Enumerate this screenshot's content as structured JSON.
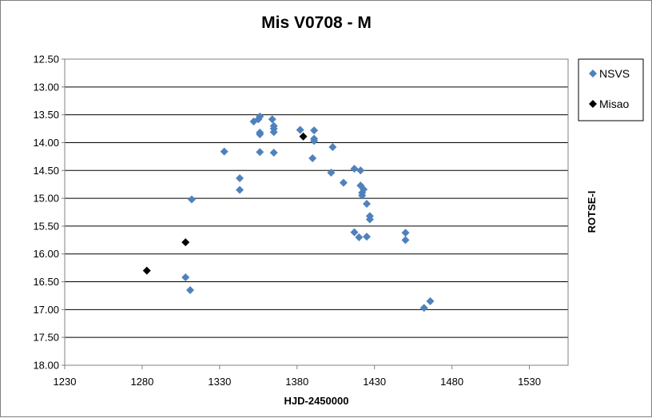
{
  "chart_data": {
    "type": "scatter",
    "title": "Mis V0708 - M",
    "xlabel": "HJD-2450000",
    "ylabel": "ROTSE-I",
    "xlim": [
      1230,
      1555
    ],
    "ylim": [
      12.5,
      18.0
    ],
    "y_reversed": true,
    "xticks": [
      "1230",
      "1280",
      "1330",
      "1380",
      "1430",
      "1480",
      "1530"
    ],
    "yticks": [
      "12.50",
      "13.00",
      "13.50",
      "14.00",
      "14.50",
      "15.00",
      "15.50",
      "16.00",
      "16.50",
      "17.00",
      "17.50",
      "18.00"
    ],
    "grid": "horizontal",
    "legend_position": "right-top",
    "series": [
      {
        "name": "NSVS",
        "color": "#4f81bd",
        "marker": "diamond",
        "points": [
          [
            1308,
            16.42
          ],
          [
            1311,
            16.65
          ],
          [
            1312,
            15.02
          ],
          [
            1333,
            14.16
          ],
          [
            1343,
            14.64
          ],
          [
            1343,
            14.85
          ],
          [
            1352,
            13.62
          ],
          [
            1355,
            13.58
          ],
          [
            1356,
            13.53
          ],
          [
            1356,
            13.82
          ],
          [
            1356,
            13.85
          ],
          [
            1356,
            14.17
          ],
          [
            1364,
            13.58
          ],
          [
            1365,
            13.7
          ],
          [
            1365,
            13.75
          ],
          [
            1365,
            13.81
          ],
          [
            1365,
            14.18
          ],
          [
            1382,
            13.77
          ],
          [
            1390,
            14.28
          ],
          [
            1391,
            13.78
          ],
          [
            1391,
            13.93
          ],
          [
            1391,
            13.97
          ],
          [
            1402,
            14.54
          ],
          [
            1403,
            14.08
          ],
          [
            1410,
            14.72
          ],
          [
            1417,
            14.47
          ],
          [
            1417,
            15.61
          ],
          [
            1420,
            15.7
          ],
          [
            1421,
            14.5
          ],
          [
            1421,
            14.77
          ],
          [
            1422,
            14.9
          ],
          [
            1422,
            14.95
          ],
          [
            1423,
            14.84
          ],
          [
            1425,
            15.69
          ],
          [
            1425,
            15.1
          ],
          [
            1427,
            15.32
          ],
          [
            1427,
            15.38
          ],
          [
            1450,
            15.62
          ],
          [
            1450,
            15.75
          ],
          [
            1462,
            16.97
          ],
          [
            1466,
            16.85
          ]
        ]
      },
      {
        "name": "Misao",
        "color": "#000000",
        "marker": "diamond",
        "points": [
          [
            1283,
            16.3
          ],
          [
            1308,
            15.79
          ],
          [
            1384,
            13.89
          ]
        ]
      }
    ]
  }
}
